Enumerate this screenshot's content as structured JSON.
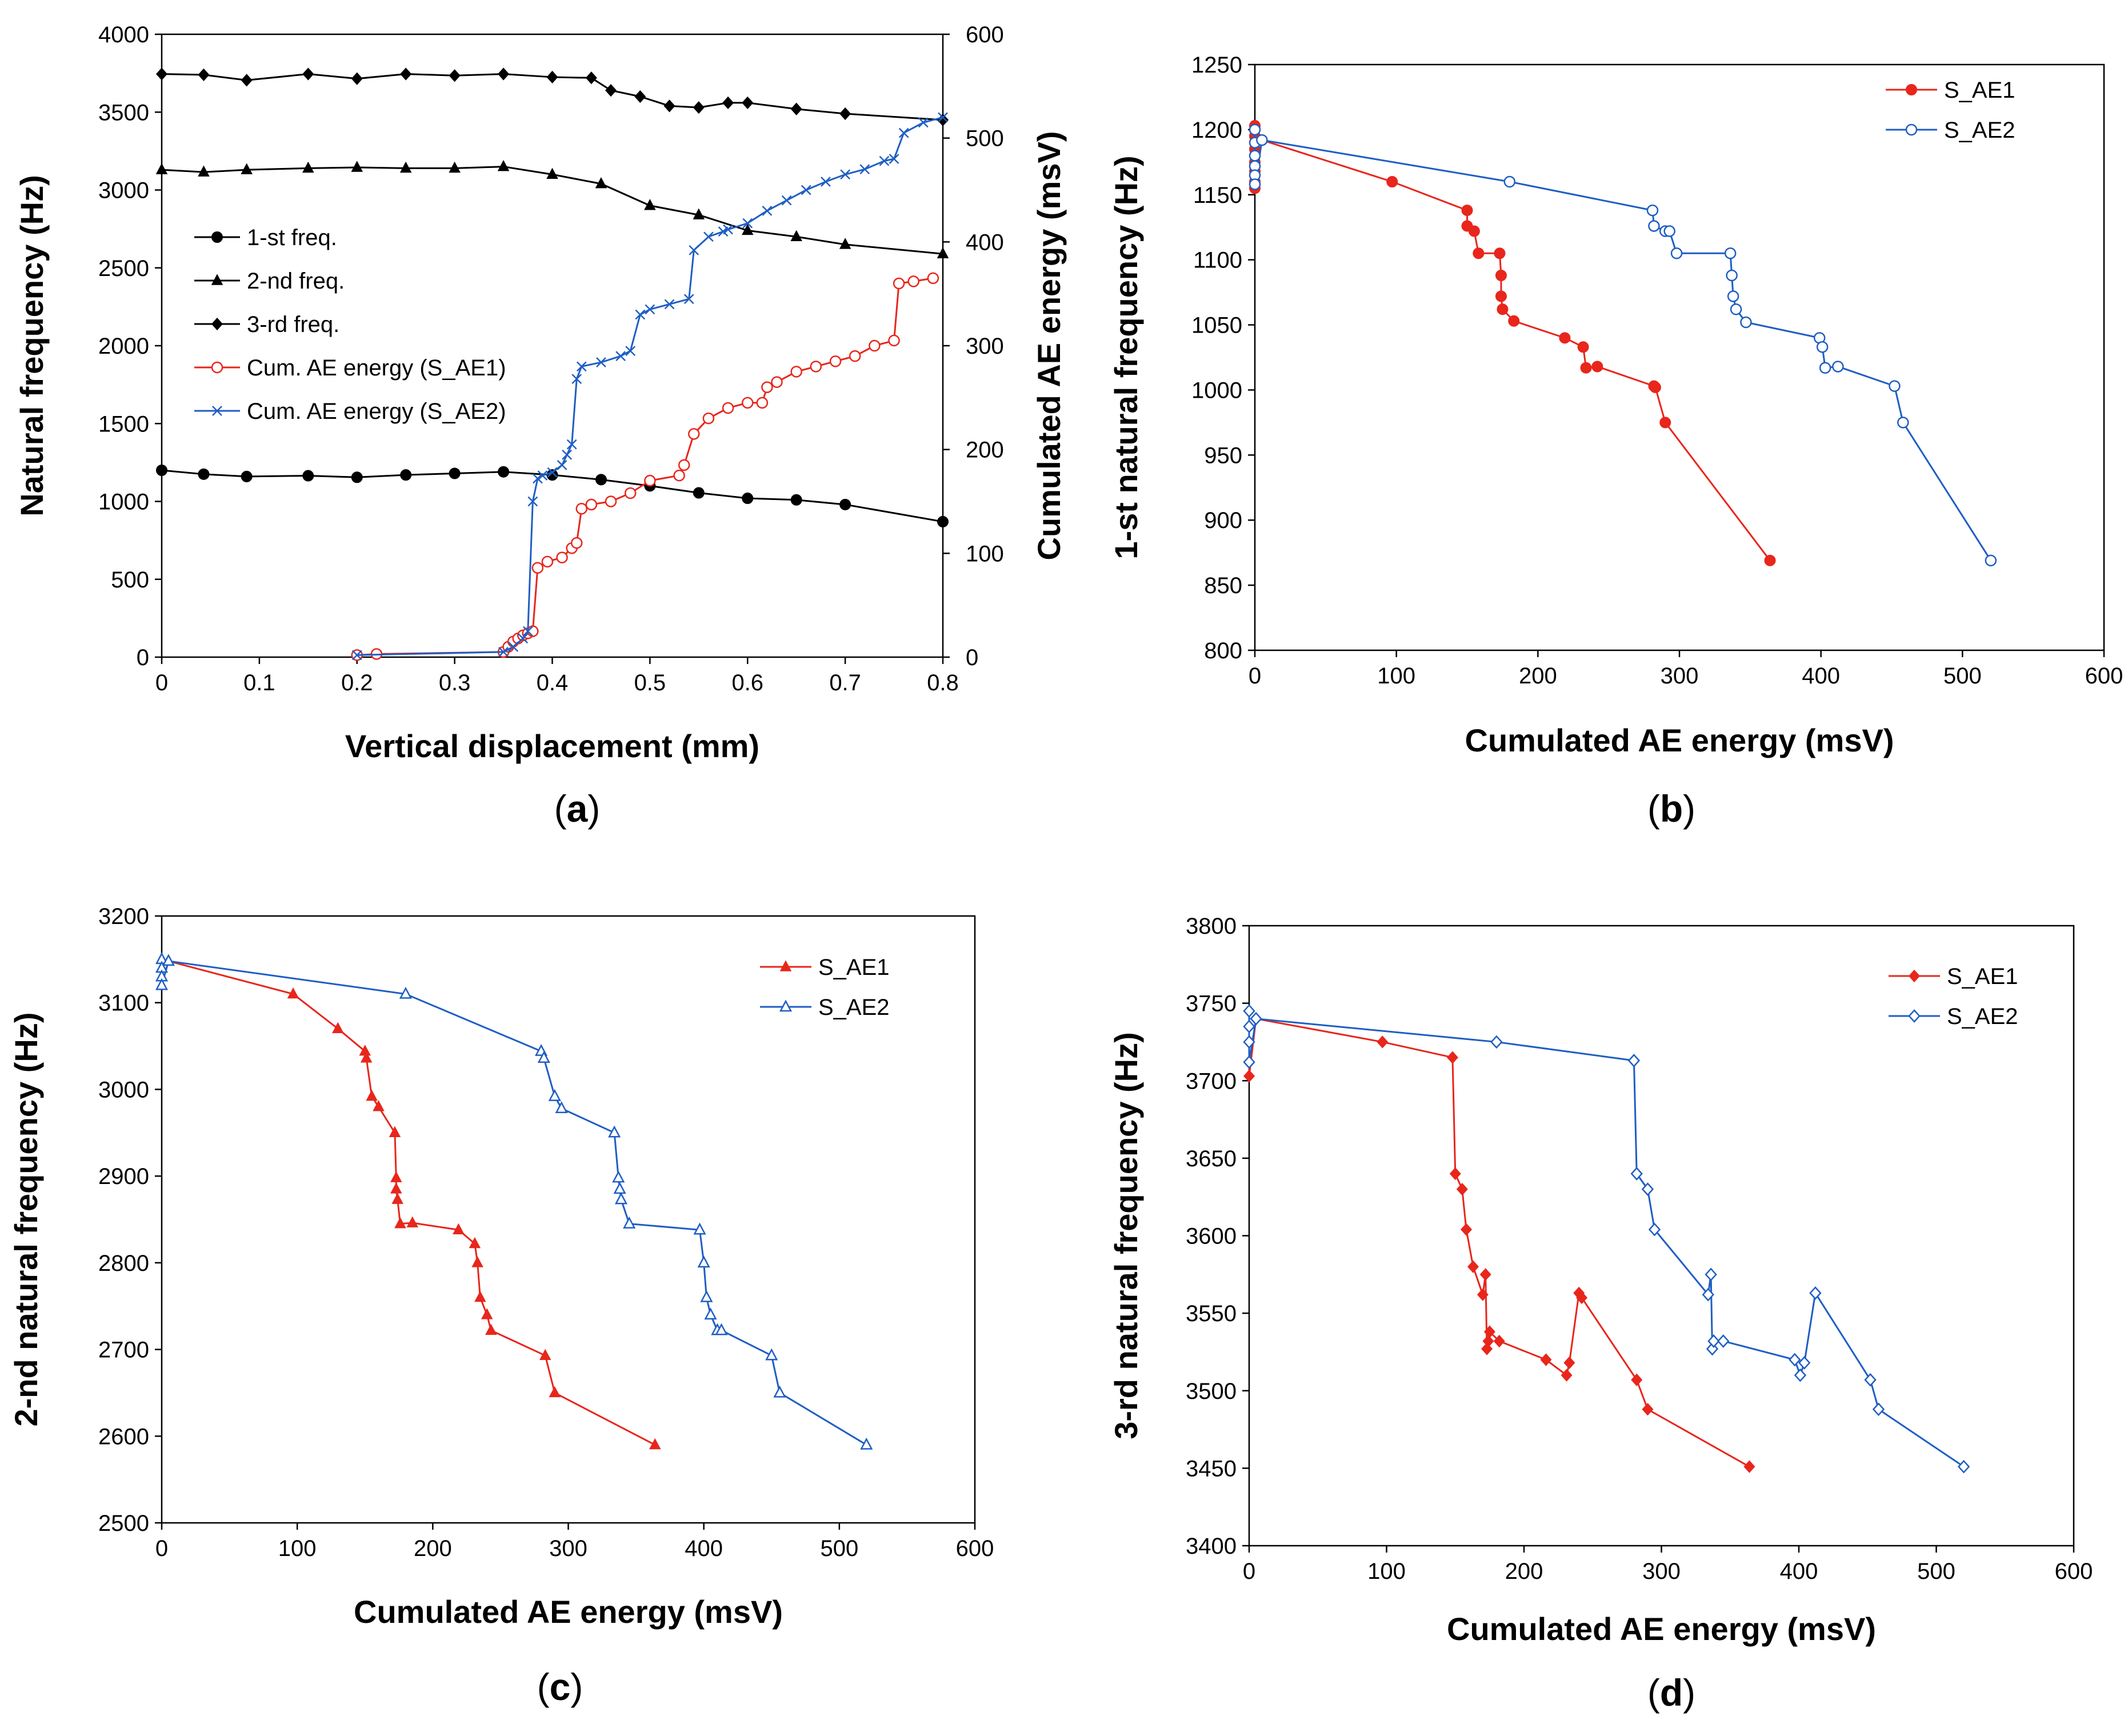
{
  "chart_data": [
    {
      "id": "a",
      "type": "line",
      "caption": "a",
      "xlabel": "Vertical displacement (mm)",
      "ylabel": "Natural frequency (Hz)",
      "y2label": "Cumulated AE energy (msV)",
      "xlim": [
        0,
        0.8
      ],
      "ylim": [
        0,
        4000
      ],
      "y2lim": [
        0,
        600
      ],
      "xticks": [
        "0",
        "0.1",
        "0.2",
        "0.3",
        "0.4",
        "0.5",
        "0.6",
        "0.7",
        "0.8"
      ],
      "yticks": [
        "0",
        "500",
        "1000",
        "1500",
        "2000",
        "2500",
        "3000",
        "3500",
        "4000"
      ],
      "y2ticks": [
        "0",
        "100",
        "200",
        "300",
        "400",
        "500",
        "600"
      ],
      "legend_position": "left",
      "series": [
        {
          "name": "1-st freq.",
          "color": "#000000",
          "marker": "circle",
          "axis": "left",
          "x": [
            0,
            0.043,
            0.087,
            0.15,
            0.2,
            0.25,
            0.3,
            0.35,
            0.4,
            0.45,
            0.5,
            0.55,
            0.6,
            0.65,
            0.7,
            0.8
          ],
          "y": [
            1200,
            1175,
            1160,
            1165,
            1155,
            1170,
            1180,
            1190,
            1170,
            1140,
            1100,
            1055,
            1020,
            1010,
            980,
            870
          ]
        },
        {
          "name": "2-nd freq.",
          "color": "#000000",
          "marker": "triangle",
          "axis": "left",
          "x": [
            0,
            0.043,
            0.087,
            0.15,
            0.2,
            0.25,
            0.3,
            0.35,
            0.4,
            0.45,
            0.5,
            0.55,
            0.6,
            0.65,
            0.7,
            0.8
          ],
          "y": [
            3130,
            3115,
            3130,
            3140,
            3145,
            3140,
            3140,
            3150,
            3100,
            3040,
            2900,
            2840,
            2740,
            2700,
            2650,
            2590
          ]
        },
        {
          "name": "3-rd freq.",
          "color": "#000000",
          "marker": "diamond",
          "axis": "left",
          "x": [
            0,
            0.043,
            0.087,
            0.15,
            0.2,
            0.25,
            0.3,
            0.35,
            0.4,
            0.44,
            0.46,
            0.49,
            0.52,
            0.55,
            0.58,
            0.6,
            0.65,
            0.7,
            0.8
          ],
          "y": [
            3745,
            3740,
            3705,
            3745,
            3715,
            3745,
            3735,
            3745,
            3725,
            3720,
            3640,
            3600,
            3540,
            3530,
            3560,
            3560,
            3520,
            3490,
            3450
          ]
        },
        {
          "name": "Cum. AE energy (S_AE1)",
          "color": "#e8261c",
          "marker": "open-circle",
          "axis": "right",
          "x": [
            0.2,
            0.22,
            0.35,
            0.355,
            0.36,
            0.365,
            0.37,
            0.375,
            0.38,
            0.385,
            0.395,
            0.41,
            0.42,
            0.425,
            0.43,
            0.44,
            0.46,
            0.48,
            0.5,
            0.53,
            0.535,
            0.545,
            0.56,
            0.58,
            0.6,
            0.615,
            0.62,
            0.63,
            0.65,
            0.67,
            0.69,
            0.71,
            0.73,
            0.75,
            0.755,
            0.77,
            0.79
          ],
          "y": [
            2,
            3,
            5,
            10,
            15,
            18,
            21,
            23,
            25,
            86,
            92,
            96,
            105,
            110,
            143,
            147,
            150,
            158,
            170,
            175,
            185,
            215,
            230,
            240,
            245,
            245,
            260,
            265,
            275,
            280,
            285,
            290,
            300,
            305,
            360,
            362,
            365
          ]
        },
        {
          "name": "Cum. AE energy (S_AE2)",
          "color": "#1f5ec4",
          "marker": "x",
          "axis": "right",
          "x": [
            0.2,
            0.35,
            0.36,
            0.37,
            0.375,
            0.38,
            0.385,
            0.39,
            0.4,
            0.41,
            0.415,
            0.42,
            0.425,
            0.43,
            0.45,
            0.47,
            0.48,
            0.49,
            0.5,
            0.52,
            0.54,
            0.545,
            0.56,
            0.575,
            0.58,
            0.6,
            0.62,
            0.64,
            0.66,
            0.68,
            0.7,
            0.72,
            0.74,
            0.75,
            0.76,
            0.78,
            0.8
          ],
          "y": [
            2,
            5,
            10,
            18,
            25,
            150,
            172,
            175,
            178,
            185,
            195,
            205,
            268,
            280,
            284,
            290,
            295,
            330,
            335,
            340,
            345,
            392,
            405,
            410,
            412,
            418,
            430,
            440,
            450,
            458,
            465,
            470,
            478,
            480,
            505,
            515,
            520
          ]
        }
      ]
    },
    {
      "id": "b",
      "type": "line",
      "caption": "b",
      "xlabel": "Cumulated AE energy (msV)",
      "ylabel": "1-st natural frequency (Hz)",
      "xlim": [
        0,
        600
      ],
      "ylim": [
        800,
        1250
      ],
      "xticks": [
        "0",
        "100",
        "200",
        "300",
        "400",
        "500",
        "600"
      ],
      "yticks": [
        "800",
        "850",
        "900",
        "950",
        "1000",
        "1050",
        "1100",
        "1150",
        "1200",
        "1250"
      ],
      "legend_position": "top-right",
      "series": [
        {
          "name": "S_AE1",
          "color": "#e8261c",
          "marker": "filled-circle",
          "x": [
            0,
            0,
            0,
            0,
            0,
            0,
            0,
            5,
            97,
            150,
            150,
            155,
            158,
            173,
            174,
            174,
            175,
            183,
            219,
            232,
            234,
            242,
            282,
            283,
            290,
            364
          ],
          "y": [
            1203,
            1195,
            1185,
            1175,
            1168,
            1160,
            1155,
            1192,
            1160,
            1138,
            1126,
            1122,
            1105,
            1105,
            1088,
            1072,
            1062,
            1053,
            1040,
            1033,
            1017,
            1018,
            1003,
            1002,
            975,
            869
          ]
        },
        {
          "name": "S_AE2",
          "color": "#1f5ec4",
          "marker": "open-circle",
          "x": [
            0,
            0,
            0,
            0,
            0,
            0,
            5,
            180,
            281,
            282,
            290,
            293,
            298,
            336,
            337,
            338,
            340,
            347,
            399,
            401,
            403,
            412,
            452,
            458,
            520
          ],
          "y": [
            1200,
            1190,
            1180,
            1172,
            1165,
            1158,
            1192,
            1160,
            1138,
            1126,
            1122,
            1122,
            1105,
            1105,
            1088,
            1072,
            1062,
            1052,
            1040,
            1033,
            1017,
            1018,
            1003,
            975,
            869
          ]
        }
      ]
    },
    {
      "id": "c",
      "type": "line",
      "caption": "c",
      "xlabel": "Cumulated AE energy (msV)",
      "ylabel": "2-nd natural frequency (Hz)",
      "xlim": [
        0,
        600
      ],
      "ylim": [
        2500,
        3200
      ],
      "xticks": [
        "0",
        "100",
        "200",
        "300",
        "400",
        "500",
        "600"
      ],
      "yticks": [
        "2500",
        "2600",
        "2700",
        "2800",
        "2900",
        "3000",
        "3100",
        "3200"
      ],
      "legend_position": "top-right",
      "series": [
        {
          "name": "S_AE1",
          "color": "#e8261c",
          "marker": "filled-triangle",
          "x": [
            0,
            0,
            0,
            0,
            5,
            97,
            130,
            150,
            151,
            155,
            160,
            172,
            173,
            173,
            174,
            176,
            185,
            219,
            231,
            233,
            235,
            240,
            243,
            283,
            290,
            364
          ],
          "y": [
            3150,
            3140,
            3130,
            3120,
            3148,
            3110,
            3070,
            3044,
            3036,
            2992,
            2980,
            2950,
            2898,
            2885,
            2873,
            2845,
            2846,
            2838,
            2822,
            2800,
            2760,
            2740,
            2722,
            2693,
            2650,
            2590
          ]
        },
        {
          "name": "S_AE2",
          "color": "#1f5ec4",
          "marker": "open-triangle",
          "x": [
            0,
            0,
            0,
            0,
            5,
            180,
            280,
            282,
            290,
            295,
            334,
            337,
            338,
            339,
            345,
            397,
            400,
            402,
            405,
            410,
            413,
            450,
            456,
            520
          ],
          "y": [
            3150,
            3140,
            3130,
            3120,
            3148,
            3110,
            3044,
            3036,
            2992,
            2978,
            2950,
            2898,
            2885,
            2873,
            2845,
            2838,
            2800,
            2760,
            2740,
            2722,
            2722,
            2693,
            2650,
            2590
          ]
        }
      ]
    },
    {
      "id": "d",
      "type": "line",
      "caption": "d",
      "xlabel": "Cumulated AE energy (msV)",
      "ylabel": "3-rd natural frequency (Hz)",
      "xlim": [
        0,
        600
      ],
      "ylim": [
        3400,
        3800
      ],
      "xticks": [
        "0",
        "100",
        "200",
        "300",
        "400",
        "500",
        "600"
      ],
      "yticks": [
        "3400",
        "3450",
        "3500",
        "3550",
        "3600",
        "3650",
        "3700",
        "3750",
        "3800"
      ],
      "legend_position": "top-right",
      "series": [
        {
          "name": "S_AE1",
          "color": "#e8261c",
          "marker": "filled-diamond",
          "x": [
            0,
            0,
            0,
            0,
            0,
            5,
            97,
            148,
            150,
            155,
            158,
            163,
            170,
            172,
            173,
            174,
            175,
            182,
            216,
            231,
            233,
            240,
            242,
            282,
            290,
            364
          ],
          "y": [
            3745,
            3735,
            3725,
            3712,
            3703,
            3740,
            3725,
            3715,
            3640,
            3630,
            3604,
            3580,
            3562,
            3575,
            3527,
            3532,
            3538,
            3532,
            3520,
            3510,
            3518,
            3563,
            3560,
            3507,
            3488,
            3451
          ]
        },
        {
          "name": "S_AE2",
          "color": "#1f5ec4",
          "marker": "open-diamond",
          "x": [
            0,
            0,
            0,
            0,
            5,
            180,
            280,
            282,
            290,
            295,
            334,
            336,
            337,
            338,
            345,
            397,
            401,
            404,
            412,
            452,
            458,
            520
          ],
          "y": [
            3745,
            3735,
            3725,
            3712,
            3740,
            3725,
            3713,
            3640,
            3630,
            3604,
            3562,
            3575,
            3527,
            3532,
            3532,
            3520,
            3510,
            3518,
            3563,
            3507,
            3488,
            3451
          ]
        }
      ]
    }
  ]
}
